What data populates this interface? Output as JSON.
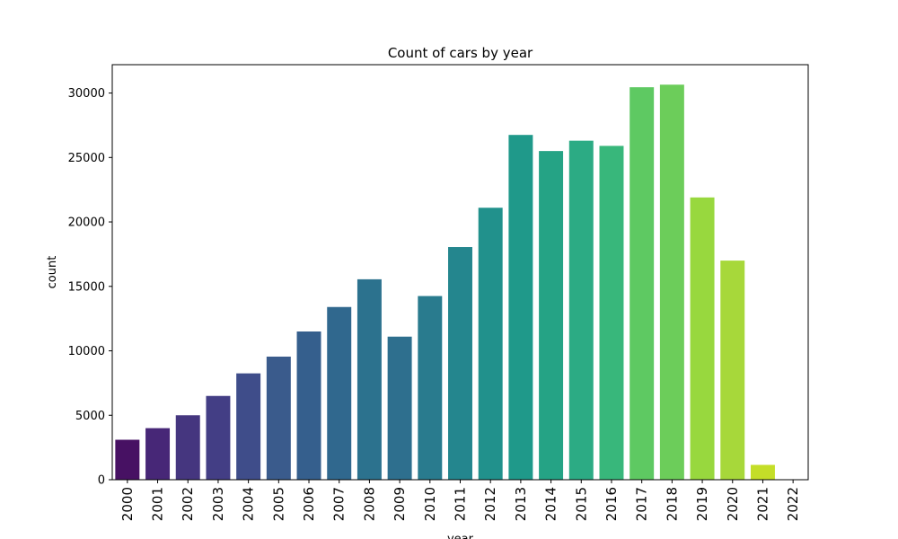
{
  "chart_data": {
    "type": "bar",
    "title": "Count of cars by year",
    "xlabel": "year",
    "ylabel": "count",
    "categories": [
      "2000",
      "2001",
      "2002",
      "2003",
      "2004",
      "2005",
      "2006",
      "2007",
      "2008",
      "2009",
      "2010",
      "2011",
      "2012",
      "2013",
      "2014",
      "2015",
      "2016",
      "2017",
      "2018",
      "2019",
      "2020",
      "2021",
      "2022"
    ],
    "values": [
      3100,
      4000,
      5000,
      6500,
      8250,
      9550,
      11500,
      13400,
      15550,
      11100,
      14250,
      18050,
      21100,
      26750,
      25500,
      26300,
      25900,
      30450,
      30650,
      21900,
      17000,
      1150,
      20
    ],
    "yticks": [
      0,
      5000,
      10000,
      15000,
      20000,
      25000,
      30000
    ],
    "ylim": [
      0,
      32200
    ],
    "grid": false,
    "legend": "none",
    "colors": [
      "#471163",
      "#472777",
      "#45367f",
      "#433e85",
      "#3f4d8a",
      "#3a5b8c",
      "#355f8d",
      "#30688e",
      "#2c728e",
      "#2e6f8e",
      "#297b8e",
      "#24868e",
      "#21918c",
      "#1f998a",
      "#25a385",
      "#2cab84",
      "#38b77b",
      "#5ec962",
      "#6ccd5a",
      "#98d83e",
      "#a7d83a",
      "#c4de28",
      "#fde725"
    ]
  }
}
